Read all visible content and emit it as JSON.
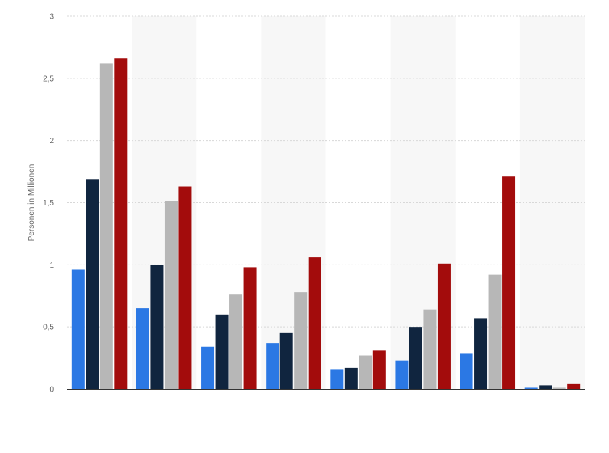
{
  "chart_data": {
    "type": "bar",
    "title": "",
    "xlabel": "",
    "ylabel": "Personen in Millionen",
    "ylim": [
      0,
      3
    ],
    "y_ticks": [
      {
        "value": 0,
        "label": "0"
      },
      {
        "value": 0.5,
        "label": "0,5"
      },
      {
        "value": 1,
        "label": "1"
      },
      {
        "value": 1.5,
        "label": "1,5"
      },
      {
        "value": 2,
        "label": "2"
      },
      {
        "value": 2.5,
        "label": "2,5"
      },
      {
        "value": 3,
        "label": "3"
      }
    ],
    "category_count": 8,
    "grid": true,
    "alternating_band_color": "#f7f7f7",
    "series": [
      {
        "color": "#2b78e4",
        "values": [
          0.96,
          0.65,
          0.34,
          0.37,
          0.16,
          0.23,
          0.29,
          0.01
        ]
      },
      {
        "color": "#10253f",
        "values": [
          1.69,
          1.0,
          0.6,
          0.45,
          0.17,
          0.5,
          0.57,
          0.03
        ]
      },
      {
        "color": "#b7b7b7",
        "values": [
          2.62,
          1.51,
          0.76,
          0.78,
          0.27,
          0.64,
          0.92,
          0.01
        ]
      },
      {
        "color": "#a30c0c",
        "values": [
          2.66,
          1.63,
          0.98,
          1.06,
          0.31,
          1.01,
          1.71,
          0.04
        ]
      }
    ]
  }
}
